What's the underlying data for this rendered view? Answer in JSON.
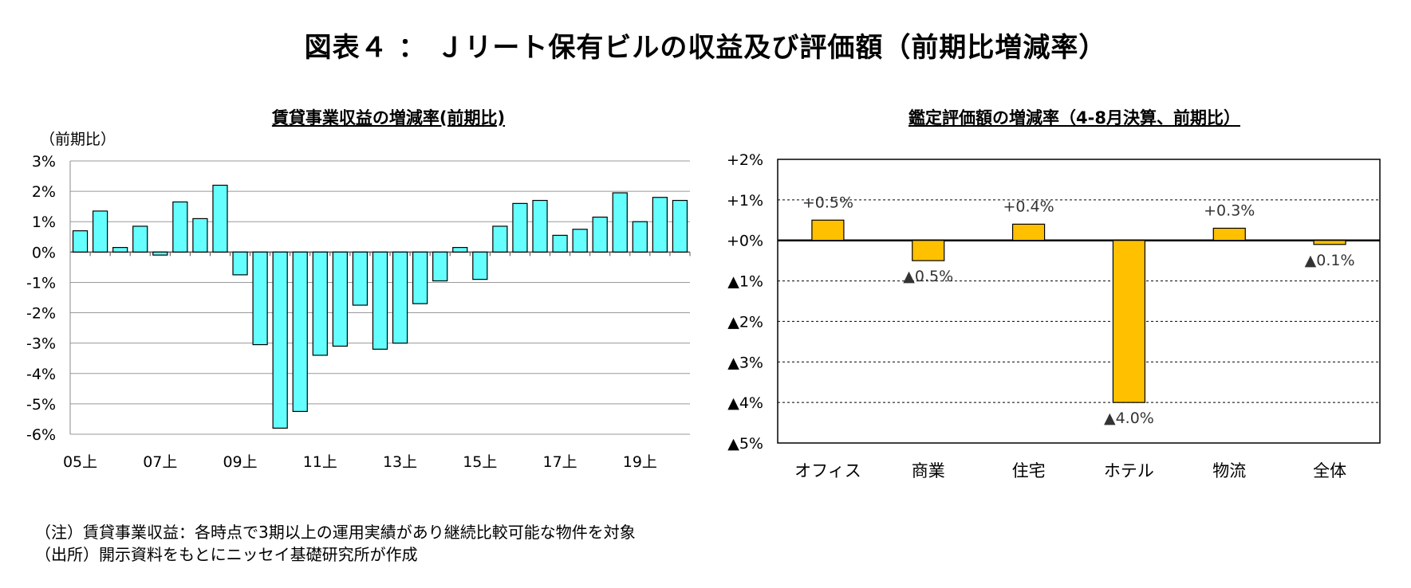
{
  "figure_title": "図表４ ： Ｊリート保有ビルの収益及び評価額（前期比増減率）",
  "notes": [
    "（注）賃貸事業収益：各時点で3期以上の運用実績があり継続比較可能な物件を対象",
    "（出所）開示資料をもとにニッセイ基礎研究所が作成"
  ],
  "colors": {
    "left_bars": "#66FFFF",
    "right_bars": "#FFC000",
    "grid": "#999999",
    "axis": "#000000"
  },
  "chart_data": [
    {
      "type": "bar",
      "title": "賃貸事業収益の増減率(前期比)",
      "ylabel": "（前期比）",
      "ylim": [
        -6,
        3
      ],
      "yticks": [
        3,
        2,
        1,
        0,
        -1,
        -2,
        -3,
        -4,
        -5,
        -6
      ],
      "ytick_labels": [
        "3%",
        "2%",
        "1%",
        "0%",
        "-1%",
        "-2%",
        "-3%",
        "-4%",
        "-5%",
        "-6%"
      ],
      "xtick_labels": [
        "05上",
        "07上",
        "09上",
        "11上",
        "13上",
        "15上",
        "17上",
        "19上"
      ],
      "categories": [
        "05上",
        "05下",
        "06上",
        "06下",
        "07上",
        "07下",
        "08上",
        "08下",
        "09上",
        "09下",
        "10上",
        "10下",
        "11上",
        "11下",
        "12上",
        "12下",
        "13上",
        "13下",
        "14上",
        "14下",
        "15上",
        "15下",
        "16上",
        "16下",
        "17上",
        "17下",
        "18上",
        "18下",
        "19上",
        "19下",
        "20上"
      ],
      "values": [
        0.7,
        1.35,
        0.15,
        0.85,
        -0.1,
        1.65,
        1.1,
        2.2,
        -0.75,
        -3.05,
        -5.8,
        -5.25,
        -3.4,
        -3.1,
        -1.75,
        -3.2,
        -3.0,
        -1.7,
        -0.95,
        0.15,
        -0.9,
        0.85,
        1.6,
        1.7,
        0.55,
        0.75,
        1.15,
        1.95,
        1.0,
        1.8,
        1.7
      ],
      "grid": true
    },
    {
      "type": "bar",
      "title": "鑑定評価額の増減率（4-8月決算、前期比）",
      "ylim": [
        -5,
        2
      ],
      "yticks": [
        2,
        1,
        0,
        -1,
        -2,
        -3,
        -4,
        -5
      ],
      "ytick_labels": [
        "+2%",
        "+1%",
        "+0%",
        "▲1%",
        "▲2%",
        "▲3%",
        "▲4%",
        "▲5%"
      ],
      "categories": [
        "オフィス",
        "商業",
        "住宅",
        "ホテル",
        "物流",
        "全体"
      ],
      "values": [
        0.5,
        -0.5,
        0.4,
        -4.0,
        0.3,
        -0.1
      ],
      "data_labels": [
        "+0.5%",
        "▲0.5%",
        "+0.4%",
        "▲4.0%",
        "+0.3%",
        "▲0.1%"
      ],
      "grid": true
    }
  ]
}
